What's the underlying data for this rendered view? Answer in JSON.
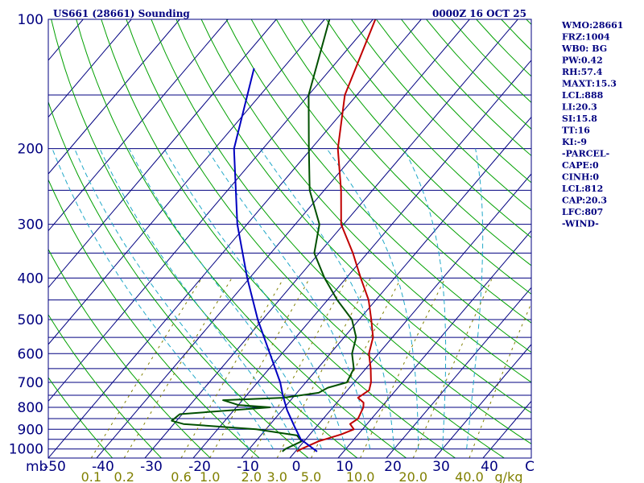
{
  "header": {
    "station": "US661 (28661) Sounding",
    "time": "0000Z 16 OCT 25"
  },
  "indices": [
    "WMO:28661",
    "FRZ:1004",
    "WB0: BG",
    "PW:0.42",
    "RH:57.4",
    "MAXT:15.3",
    "LCL:888",
    "LI:20.3",
    "SI:15.8",
    "TT:16",
    "KI:-9",
    "-PARCEL-",
    "CAPE:0",
    "CINH:0",
    "LCL:812",
    "CAP:20.3",
    "LFC:807",
    "-WIND-"
  ],
  "colors": {
    "isobar": "#000080",
    "isotherm": "#000080",
    "dry_adiabat": "#00a000",
    "moist_adiabat": "#20a8c8",
    "mixing_ratio": "#808000",
    "temperature": "#c00000",
    "dewpoint": "#005000",
    "parcel": "#0000c0",
    "label": "#000080"
  },
  "chart_data": {
    "type": "line",
    "title": "US661 (28661) Sounding",
    "subtitle": "0000Z 16 OCT 25",
    "xlabel": "",
    "ylabel": "mb",
    "x_scale": "skew-t",
    "y_scale": "log",
    "xlim": [
      -50,
      50
    ],
    "ylim": [
      1050,
      100
    ],
    "pressure_ticks": [
      100,
      200,
      300,
      400,
      500,
      600,
      700,
      800,
      900,
      1000
    ],
    "pressure_tick_labels": [
      "100",
      "200",
      "300",
      "400",
      "500",
      "600",
      "700",
      "800",
      "900",
      "1000"
    ],
    "isobar_levels": [
      100,
      150,
      200,
      250,
      300,
      350,
      400,
      450,
      500,
      550,
      600,
      650,
      700,
      750,
      800,
      850,
      900,
      950,
      1000,
      1050
    ],
    "temperature_ticks": [
      -50,
      -40,
      -30,
      -20,
      -10,
      0,
      10,
      20,
      30,
      40
    ],
    "temperature_tick_labels": [
      "-50",
      "-40",
      "-30",
      "-20",
      "-10",
      "0",
      "10",
      "20",
      "30",
      "40"
    ],
    "corner_label": "C",
    "y_unit_label": "mb",
    "mixing_ratio_ticks": [
      0.1,
      0.2,
      0.6,
      1.0,
      2.0,
      3.0,
      5.0,
      10.0,
      20.0,
      40.0
    ],
    "mixing_ratio_labels": [
      "0.1",
      "0.2",
      "0.6",
      "1.0",
      "2.0",
      "3.0",
      "5.0",
      "10.0",
      "20.0",
      "40.0"
    ],
    "mixing_ratio_unit": "g/kg",
    "grid": true,
    "series": [
      {
        "key": "temperature",
        "points": [
          [
            1014,
            0.3
          ],
          [
            1000,
            0.8
          ],
          [
            960,
            3.0
          ],
          [
            925,
            6.5
          ],
          [
            900,
            8.2
          ],
          [
            875,
            6.5
          ],
          [
            850,
            7.2
          ],
          [
            800,
            6.3
          ],
          [
            780,
            5.5
          ],
          [
            760,
            3.5
          ],
          [
            730,
            4.5
          ],
          [
            700,
            3.5
          ],
          [
            650,
            1.0
          ],
          [
            600,
            -2.0
          ],
          [
            550,
            -4.0
          ],
          [
            500,
            -7.5
          ],
          [
            450,
            -11.5
          ],
          [
            400,
            -17.0
          ],
          [
            350,
            -23.0
          ],
          [
            300,
            -30.5
          ],
          [
            250,
            -36.5
          ],
          [
            200,
            -44.5
          ],
          [
            150,
            -52.5
          ],
          [
            100,
            -59.5
          ]
        ]
      },
      {
        "key": "dewpoint",
        "points": [
          [
            1014,
            -2.7
          ],
          [
            1000,
            -2.5
          ],
          [
            960,
            -0.5
          ],
          [
            930,
            -2.5
          ],
          [
            900,
            -12.0
          ],
          [
            875,
            -28.0
          ],
          [
            860,
            -31.0
          ],
          [
            830,
            -30.5
          ],
          [
            800,
            -13.0
          ],
          [
            790,
            -20.0
          ],
          [
            770,
            -24.0
          ],
          [
            760,
            -12.0
          ],
          [
            740,
            -5.5
          ],
          [
            720,
            -4.5
          ],
          [
            700,
            -1.5
          ],
          [
            650,
            -2.5
          ],
          [
            600,
            -5.5
          ],
          [
            550,
            -7.5
          ],
          [
            500,
            -11.5
          ],
          [
            450,
            -18.0
          ],
          [
            400,
            -24.5
          ],
          [
            350,
            -31.0
          ],
          [
            300,
            -35.0
          ],
          [
            250,
            -43.0
          ],
          [
            200,
            -50.5
          ],
          [
            150,
            -60.0
          ],
          [
            100,
            -69.0
          ]
        ]
      },
      {
        "key": "parcel",
        "points": [
          [
            1014,
            4.5
          ],
          [
            950,
            -1.0
          ],
          [
            888,
            -4.5
          ],
          [
            812,
            -9.0
          ],
          [
            750,
            -12.5
          ],
          [
            700,
            -15.3
          ],
          [
            600,
            -22.5
          ],
          [
            500,
            -31.0
          ],
          [
            400,
            -40.5
          ],
          [
            300,
            -52.0
          ],
          [
            200,
            -66.0
          ],
          [
            130,
            -76.0
          ]
        ]
      }
    ]
  }
}
